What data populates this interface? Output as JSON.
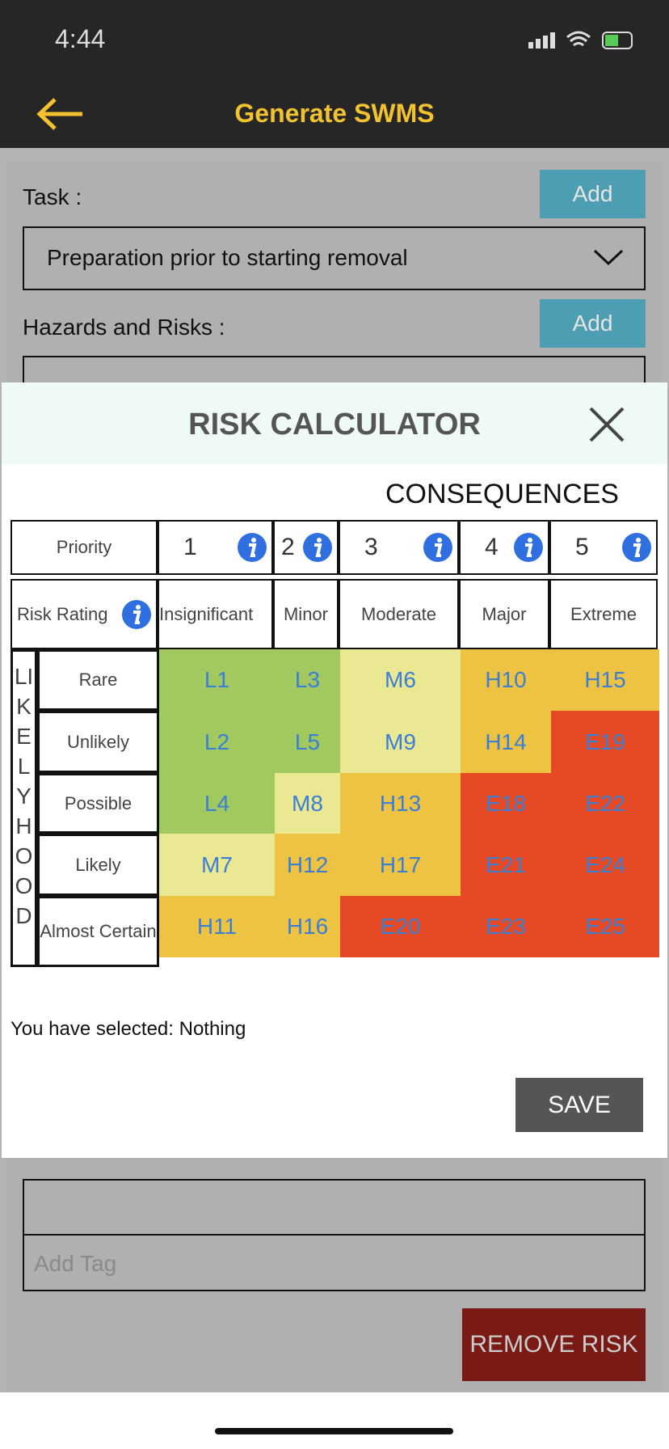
{
  "status_bar": {
    "time": "4:44"
  },
  "header": {
    "title": "Generate SWMS"
  },
  "form": {
    "task_label": "Task :",
    "task_add": "Add",
    "task_value": "Preparation prior to starting removal",
    "hazards_label": "Hazards and Risks :",
    "hazards_add": "Add",
    "tag_placeholder": "Add Tag",
    "remove_button": "REMOVE RISK"
  },
  "modal": {
    "title": "RISK CALCULATOR",
    "consequences_label": "CONSEQUENCES",
    "priority_label": "Priority",
    "priorities": [
      "1",
      "2",
      "3",
      "4",
      "5"
    ],
    "risk_rating_label": "Risk Rating",
    "consequences": [
      "Insignificant",
      "Minor",
      "Moderate",
      "Major",
      "Extreme"
    ],
    "likelihood_label": "LIKELYHOOD",
    "rows": [
      {
        "label": "Rare",
        "cells": [
          "L1",
          "L3",
          "M6",
          "H10",
          "H15"
        ]
      },
      {
        "label": "Unlikely",
        "cells": [
          "L2",
          "L5",
          "M9",
          "H14",
          "E19"
        ]
      },
      {
        "label": "Possible",
        "cells": [
          "L4",
          "M8",
          "H13",
          "E18",
          "E22"
        ]
      },
      {
        "label": "Likely",
        "cells": [
          "M7",
          "H12",
          "H17",
          "E21",
          "E24"
        ]
      },
      {
        "label": "Almost Certain",
        "cells": [
          "H11",
          "H16",
          "E20",
          "E23",
          "E25"
        ]
      }
    ],
    "selected_text": "You have selected: Nothing",
    "save_button": "SAVE"
  }
}
